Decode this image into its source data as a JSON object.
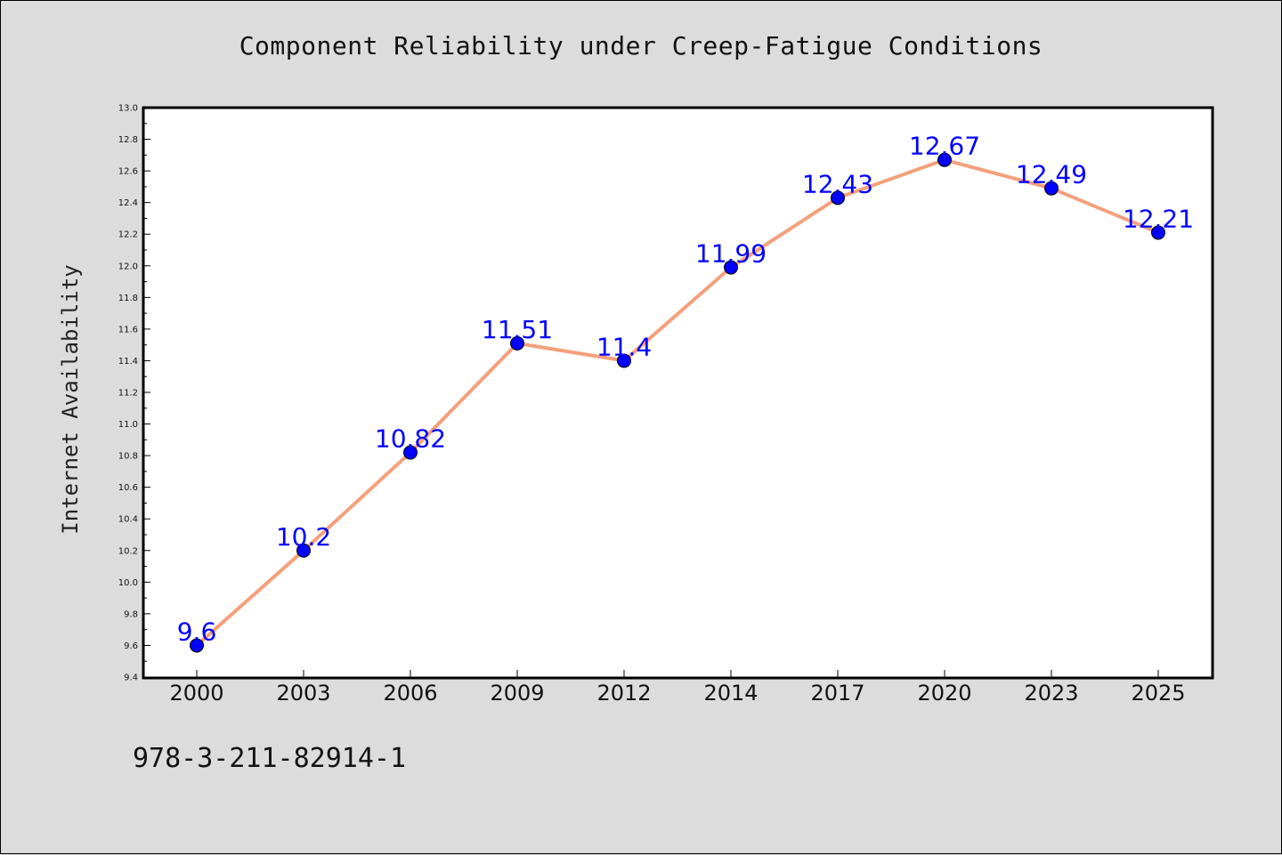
{
  "chart_data": {
    "type": "line",
    "title": "Component Reliability under Creep-Fatigue Conditions",
    "xlabel": "",
    "ylabel": "Internet Availability",
    "categories": [
      "2000",
      "2003",
      "2006",
      "2009",
      "2012",
      "2014",
      "2017",
      "2020",
      "2023",
      "2025"
    ],
    "values": [
      9.6,
      10.2,
      10.82,
      11.51,
      11.4,
      11.99,
      12.43,
      12.67,
      12.49,
      12.21
    ],
    "data_labels": [
      "9.6",
      "10.2",
      "10.82",
      "11.51",
      "11.4",
      "11.99",
      "12.43",
      "12.67",
      "12.49",
      "12.21"
    ],
    "ylim": [
      9.4,
      13.0
    ],
    "yticks": [
      "9.4",
      "9.6",
      "9.8",
      "10.0",
      "10.2",
      "10.4",
      "10.6",
      "10.8",
      "11.0",
      "11.2",
      "11.4",
      "11.6",
      "11.8",
      "12.0",
      "12.2",
      "12.4",
      "12.6",
      "12.8",
      "13.0"
    ],
    "grid": false,
    "colors": {
      "line": "#f4a07c",
      "marker": "#0000ff",
      "data_label": "#0000ff",
      "background": "#dcdcdc",
      "plot_area": "#ffffff"
    }
  },
  "footer": {
    "code": "978-3-211-82914-1"
  }
}
